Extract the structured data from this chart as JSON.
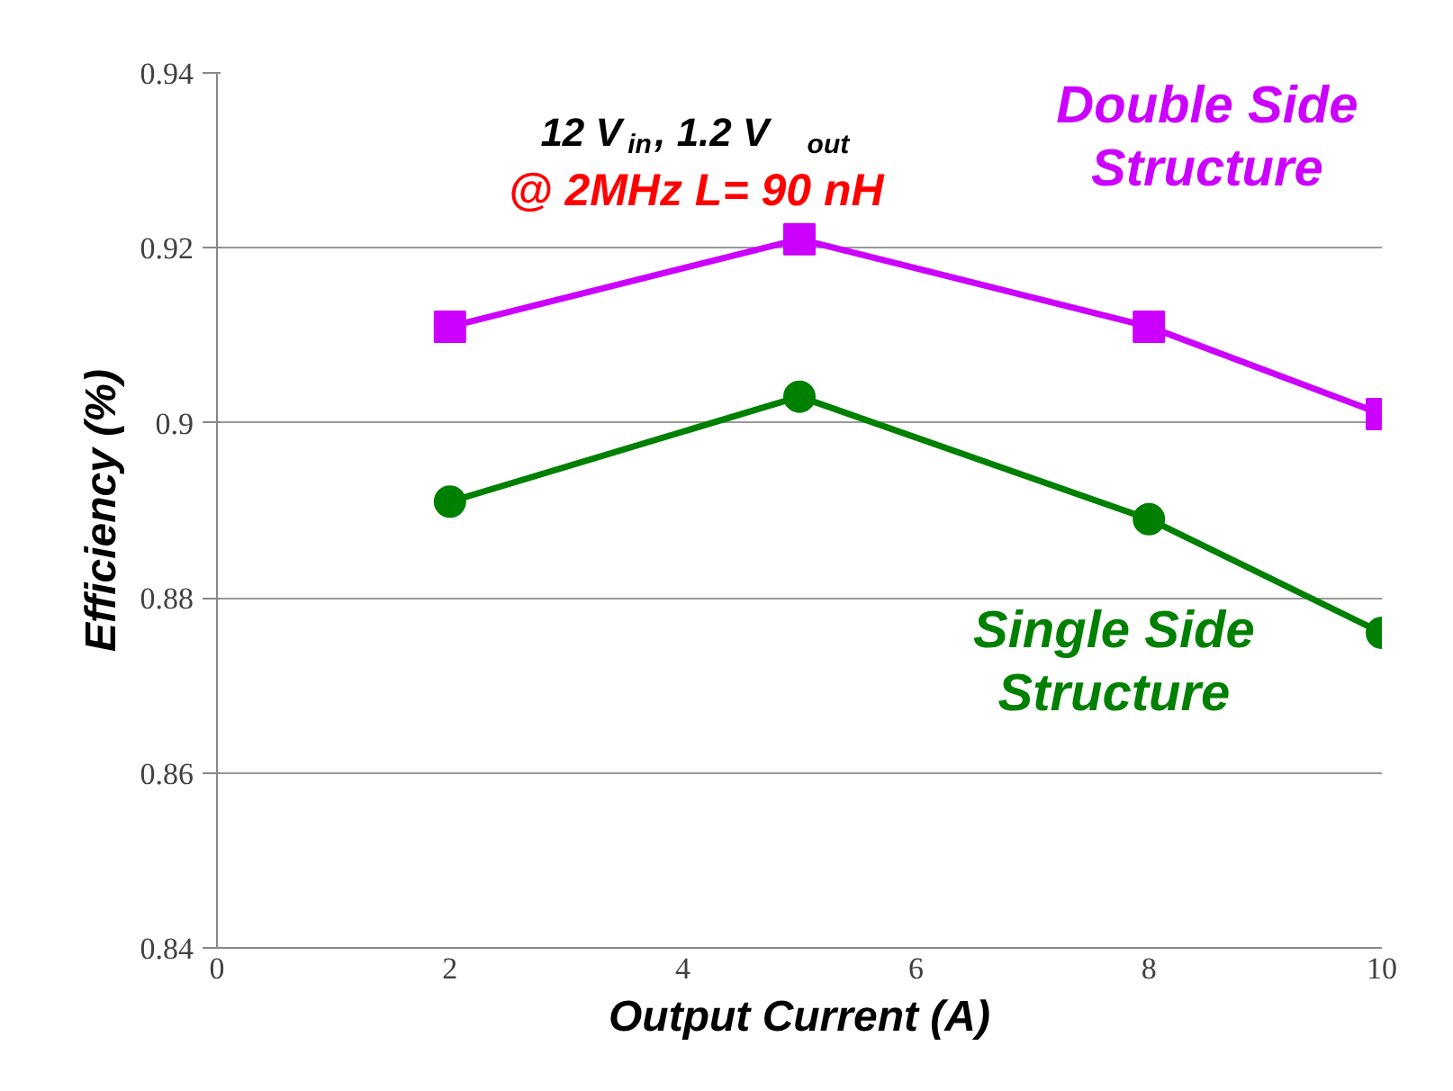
{
  "chart_data": {
    "type": "line",
    "xlabel": "Output Current (A)",
    "ylabel": "Efficiency (%)",
    "x": [
      2,
      5,
      8,
      10
    ],
    "series": [
      {
        "name": "Double Side Structure",
        "color": "#cc00ff",
        "marker": "square",
        "values": [
          0.911,
          0.921,
          0.911,
          0.901
        ]
      },
      {
        "name": "Single Side Structure",
        "color": "#008000",
        "marker": "circle",
        "values": [
          0.891,
          0.903,
          0.889,
          0.876
        ]
      }
    ],
    "xlim": [
      0,
      10
    ],
    "xticks": [
      0,
      2,
      4,
      6,
      8,
      10
    ],
    "ylim": [
      0.84,
      0.94
    ],
    "yticks": [
      0.84,
      0.86,
      0.88,
      0.9,
      0.92,
      0.94
    ],
    "grid": "y",
    "annotations": [
      "12 V$_{in}$, 1.2 V$_{out}$",
      "@ 2MHz L= 90 nH"
    ]
  }
}
